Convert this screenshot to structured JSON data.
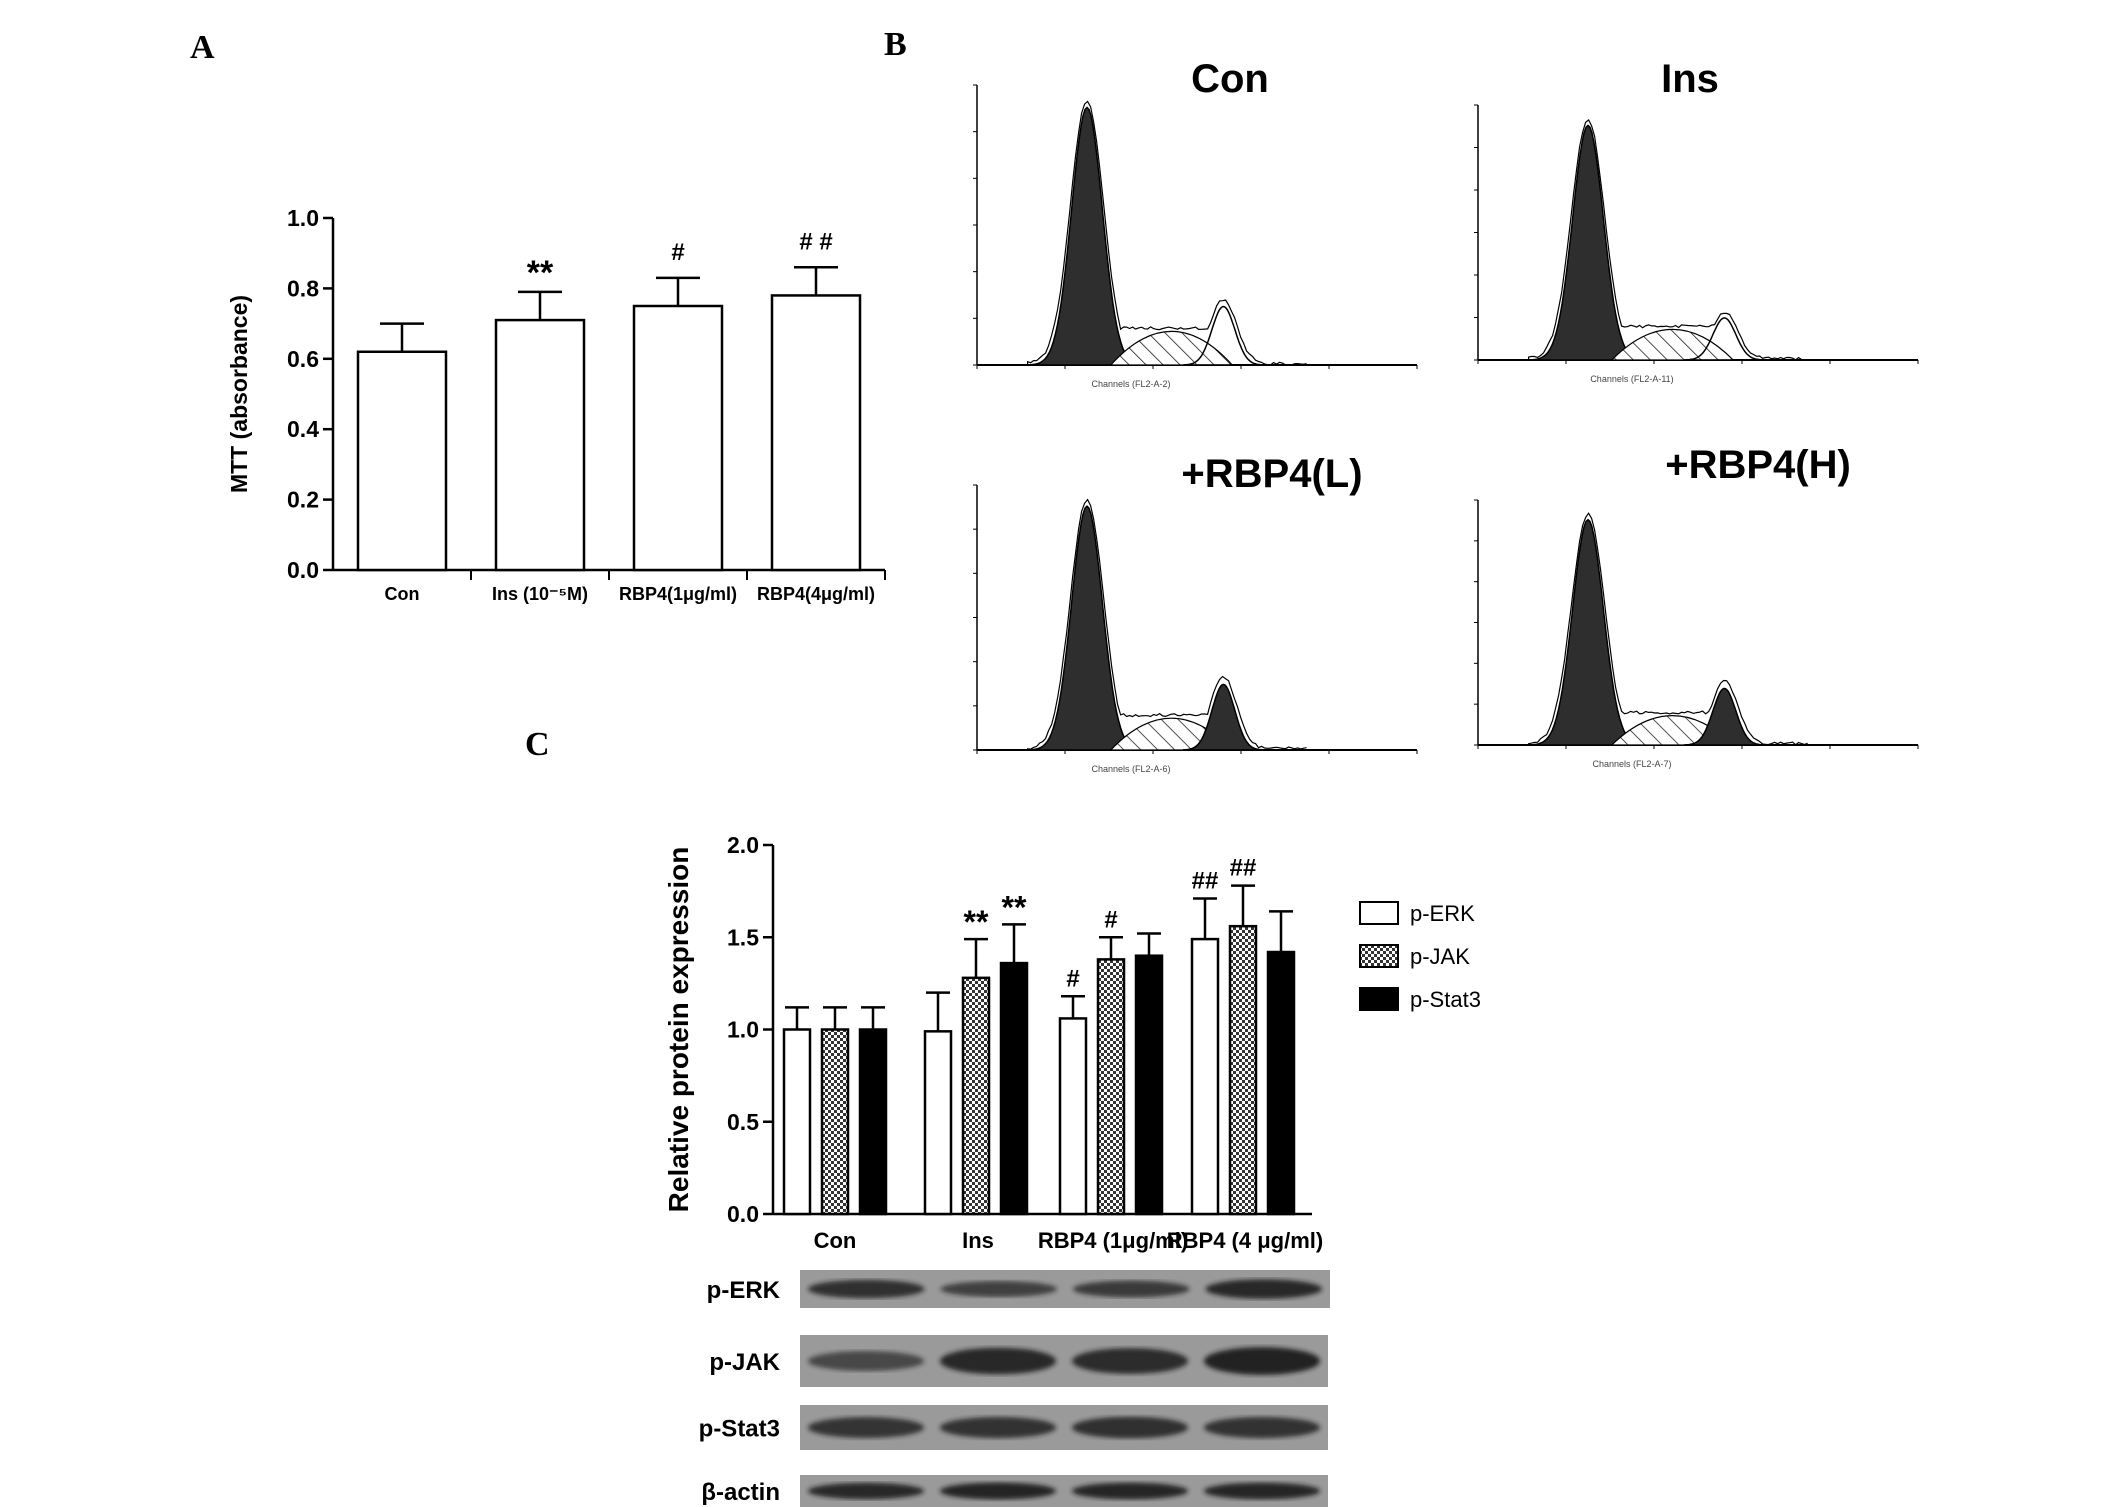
{
  "panels": {
    "a": "A",
    "b": "B",
    "c": "C"
  },
  "chart_data": [
    {
      "type": "bar",
      "panel": "A",
      "ylabel": "MTT  (absorbance)",
      "xlabel": "",
      "ylim": [
        0,
        1.0
      ],
      "yticks": [
        "0.0",
        "0.2",
        "0.4",
        "0.6",
        "0.8",
        "1.0"
      ],
      "categories": [
        "Con",
        "Ins (10⁻⁵M)",
        "RBP4(1μg/ml)",
        "RBP4(4μg/ml)"
      ],
      "values": [
        0.62,
        0.71,
        0.75,
        0.78
      ],
      "errors": [
        0.08,
        0.08,
        0.08,
        0.08
      ],
      "annotations": [
        "",
        "**",
        "#",
        "# #"
      ],
      "grid": false
    },
    {
      "type": "bar",
      "panel": "C",
      "ylabel": "Relative protein expression",
      "xlabel": "",
      "ylim": [
        0,
        2.0
      ],
      "yticks": [
        "0.0",
        "0.5",
        "1.0",
        "1.5",
        "2.0"
      ],
      "categories": [
        "Con",
        "Ins",
        "RBP4 (1μg/ml)",
        "RBP4 (4 μg/ml)"
      ],
      "legend_position": "right",
      "series": [
        {
          "name": "p-ERK",
          "fill": "white",
          "values": [
            1.0,
            0.99,
            1.06,
            1.49
          ],
          "errors": [
            0.12,
            0.21,
            0.12,
            0.22
          ],
          "annotations": [
            "",
            "",
            "#",
            "##"
          ]
        },
        {
          "name": "p-JAK",
          "fill": "checker",
          "values": [
            1.0,
            1.28,
            1.38,
            1.56
          ],
          "errors": [
            0.12,
            0.21,
            0.12,
            0.22
          ],
          "annotations": [
            "",
            "**",
            "#",
            "##"
          ]
        },
        {
          "name": "p-Stat3",
          "fill": "black",
          "values": [
            1.0,
            1.36,
            1.4,
            1.42
          ],
          "errors": [
            0.12,
            0.21,
            0.12,
            0.22
          ],
          "annotations": [
            "",
            "**",
            "",
            ""
          ]
        }
      ],
      "grid": false
    }
  ],
  "flow": {
    "titles": [
      "Con",
      "Ins",
      "+RBP4(L)",
      "+RBP4(H)"
    ],
    "xlabels": [
      "Channels (FL2-A-2)",
      "Channels (FL2-A-11)",
      "Channels (FL2-A-6)",
      "Channels (FL2-A-7)"
    ]
  },
  "blots": {
    "labels": [
      "p-ERK",
      "p-JAK",
      "p-Stat3",
      "β-actin"
    ],
    "intensity": [
      [
        0.75,
        0.55,
        0.62,
        0.85
      ],
      [
        0.45,
        0.85,
        0.8,
        0.92
      ],
      [
        0.7,
        0.72,
        0.75,
        0.72
      ],
      [
        0.85,
        0.9,
        0.88,
        0.88
      ]
    ]
  },
  "colors": {
    "ink": "#000000",
    "flow_fill": "#333333",
    "blot_bg": "#9a9a9a",
    "band": "#151515"
  }
}
